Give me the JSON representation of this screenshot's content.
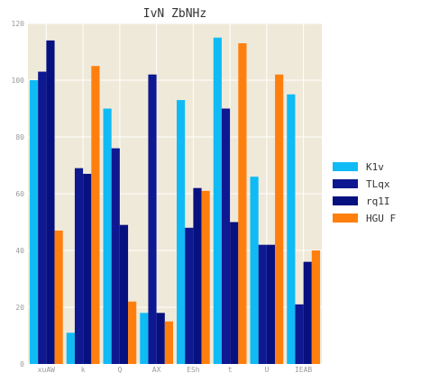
{
  "chart_data": {
    "type": "bar",
    "title": "IvN ZbNHz",
    "xlabel": "",
    "ylabel": "",
    "categories": [
      "xuAW",
      "k",
      "Q",
      "AX",
      "ESh",
      "t",
      "U",
      "IEAB"
    ],
    "ylim": [
      0,
      120
    ],
    "yticks": [
      0,
      20,
      40,
      60,
      80,
      100,
      120
    ],
    "grid": true,
    "legend_position": "right",
    "background": "#efe9d9",
    "series": [
      {
        "name": "K1v",
        "color": "#10bbf5",
        "values": [
          100,
          11,
          90,
          18,
          93,
          115,
          66,
          95
        ]
      },
      {
        "name": "TLqx",
        "color": "#0e1890",
        "values": [
          103,
          69,
          76,
          102,
          48,
          90,
          42,
          21
        ]
      },
      {
        "name": "rq1I",
        "color": "#07107f",
        "values": [
          114,
          67,
          49,
          18,
          62,
          50,
          42,
          36
        ]
      },
      {
        "name": "HGU F",
        "color": "#ff7f0e",
        "values": [
          47,
          105,
          22,
          15,
          61,
          113,
          102,
          40
        ]
      }
    ]
  }
}
